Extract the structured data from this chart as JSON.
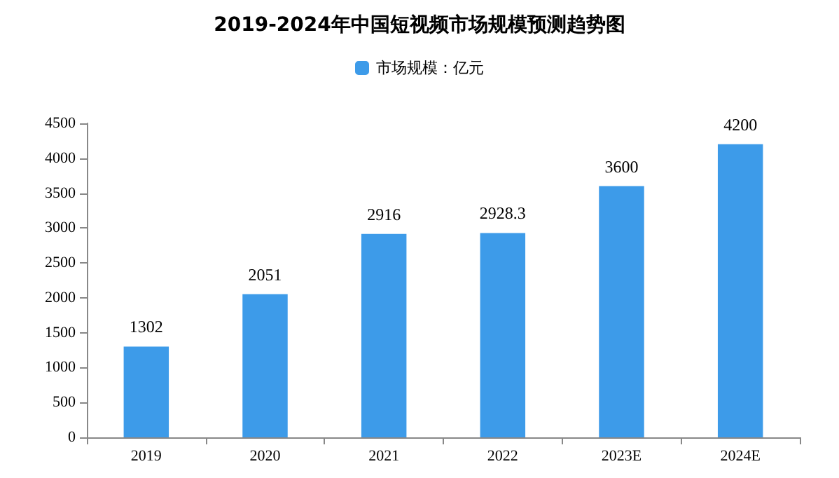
{
  "chart_data": {
    "type": "bar",
    "title": "2019-2024年中国短视频市场规模预测趋势图",
    "categories": [
      "2019",
      "2020",
      "2021",
      "2022",
      "2023E",
      "2024E"
    ],
    "series": [
      {
        "name": "市场规模：亿元",
        "color": "#3d9be9",
        "values": [
          1302,
          2051,
          2916,
          2928.3,
          3600,
          4200
        ]
      }
    ],
    "ylim": [
      0,
      4500
    ],
    "yticks": [
      0,
      500,
      1000,
      1500,
      2000,
      2500,
      3000,
      3500,
      4000,
      4500
    ],
    "data_labels": true,
    "legend": "top",
    "grid": false
  }
}
